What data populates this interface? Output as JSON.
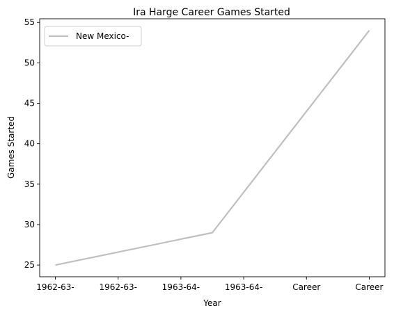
{
  "chart_data": {
    "type": "line",
    "title": "Ira Harge Career Games Started",
    "xlabel": "Year",
    "ylabel": "Games Started",
    "categories": [
      "1962-63-",
      "1962-63-",
      "1963-64-",
      "1963-64-",
      "Career",
      "Career"
    ],
    "series": [
      {
        "name": "New Mexico-",
        "color": "#bfbfbf",
        "points": [
          {
            "x": 0,
            "y": 25
          },
          {
            "x": 2.5,
            "y": 29
          },
          {
            "x": 5,
            "y": 54
          }
        ]
      }
    ],
    "yticks": [
      25,
      30,
      35,
      40,
      45,
      50,
      55
    ],
    "ylim": [
      23.55,
      55.45
    ],
    "xlim": [
      -0.25,
      5.25
    ],
    "legend": "upper-left",
    "grid": false
  }
}
